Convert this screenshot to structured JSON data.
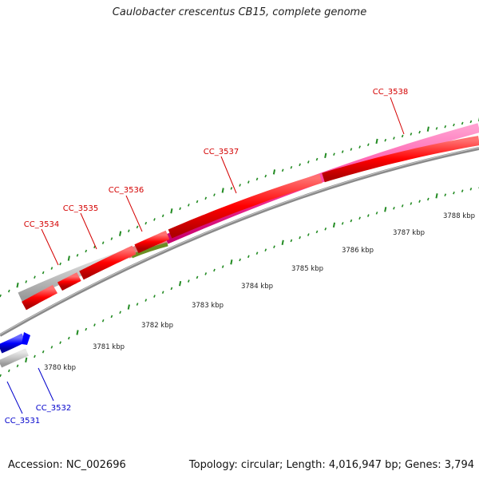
{
  "title": "Caulobacter crescentus CB15, complete genome",
  "footer": {
    "accession": "Accession: NC_002696",
    "summary": "Topology: circular; Length: 4,016,947 bp; Genes: 3,794"
  },
  "colors": {
    "forward_outer": "#ff4fa3",
    "gray_feature": "#c8c8c8",
    "forward_cds": "#ff0000",
    "reverse_cds": "#0000ff",
    "backbone": "#8a8a8a",
    "ticks": "#228b22",
    "label_forward": "#d40000",
    "label_reverse": "#0000cc"
  },
  "genes_forward": [
    {
      "name": "CC_3534"
    },
    {
      "name": "CC_3535"
    },
    {
      "name": "CC_3536"
    },
    {
      "name": "CC_3537"
    },
    {
      "name": "CC_3538"
    }
  ],
  "genes_reverse": [
    {
      "name": "CC_3531"
    },
    {
      "name": "CC_3532"
    }
  ],
  "axis_labels": [
    "3780 kbp",
    "3781 kbp",
    "3782 kbp",
    "3783 kbp",
    "3784 kbp",
    "3785 kbp",
    "3786 kbp",
    "3787 kbp",
    "3788 kbp"
  ]
}
